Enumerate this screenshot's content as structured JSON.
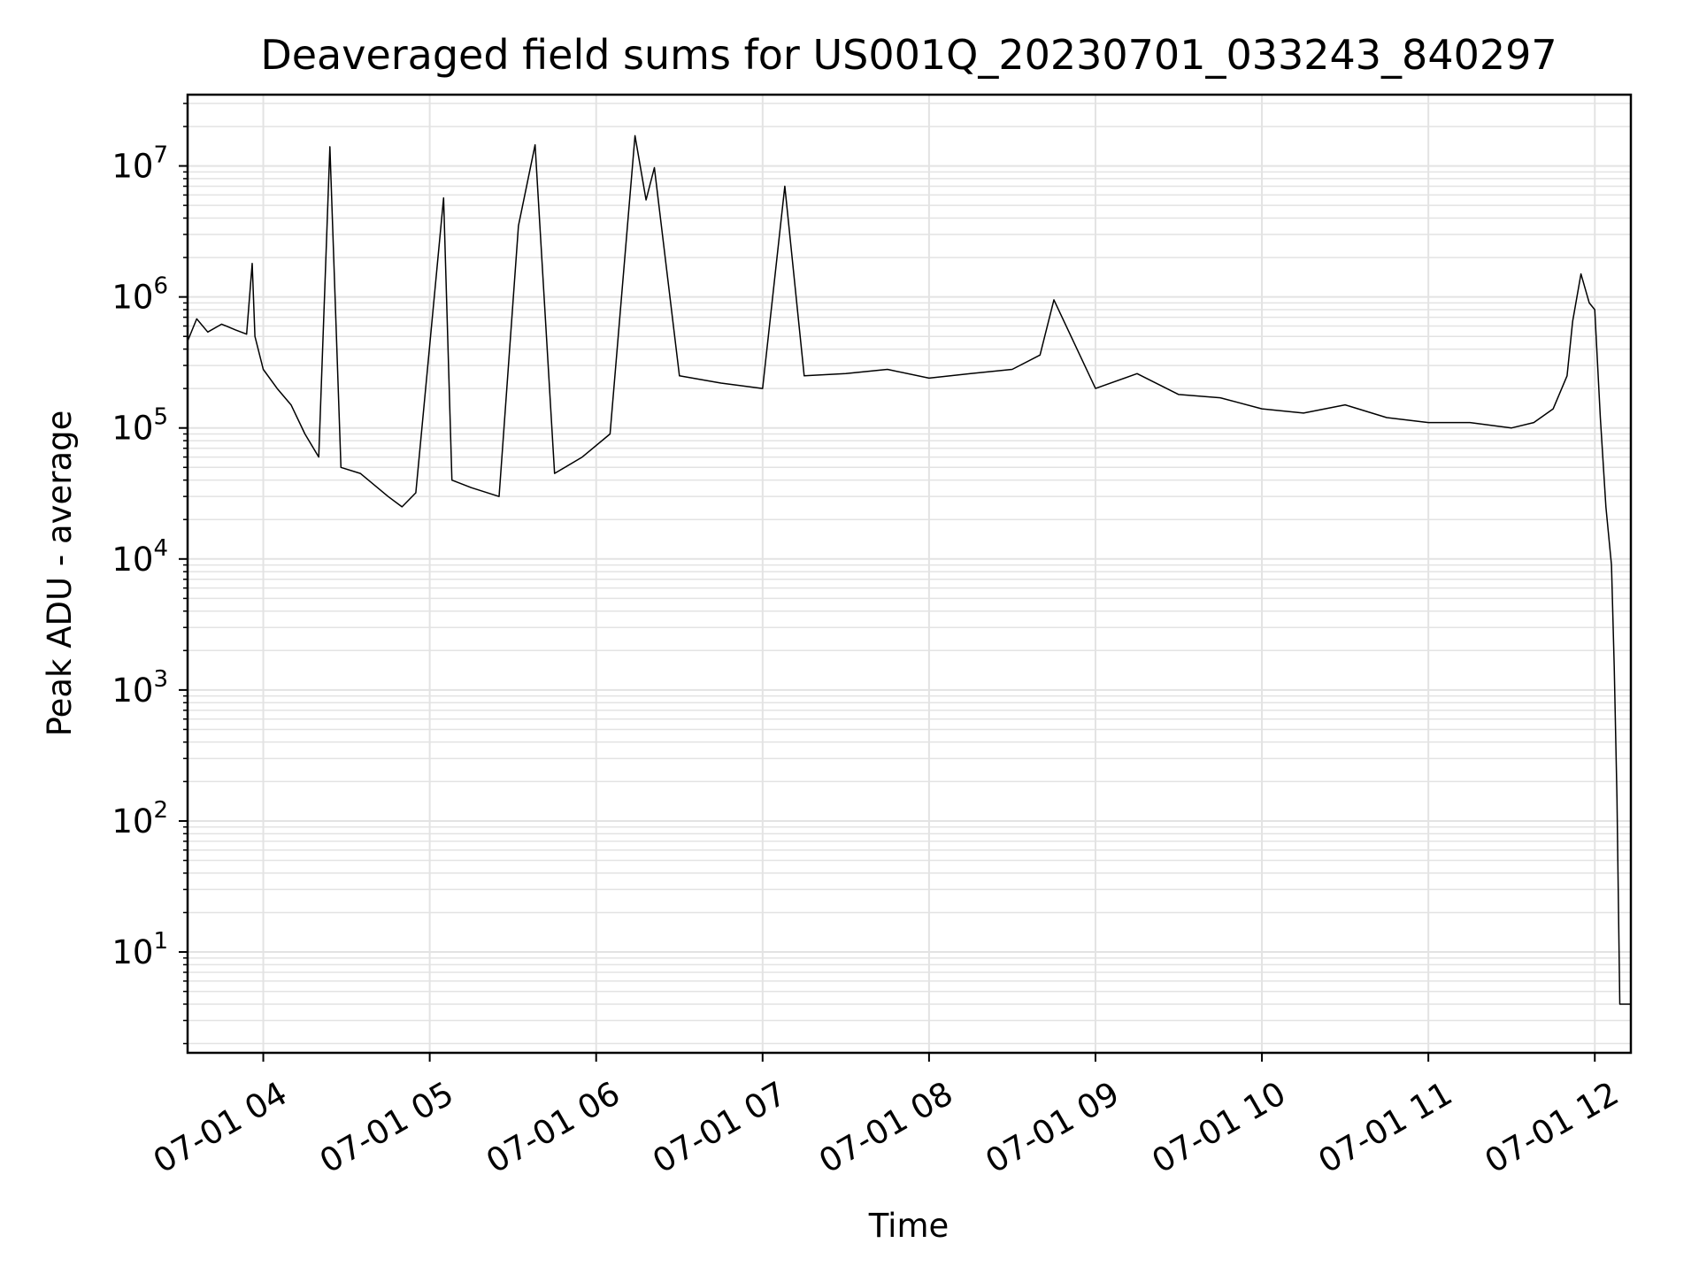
{
  "chart_data": {
    "type": "line",
    "title": "Deaveraged field sums for US001Q_20230701_033243_840297",
    "xlabel": "Time",
    "ylabel": "Peak ADU - average",
    "y_scale": "log",
    "ylim": [
      1.7,
      35000000.0
    ],
    "xlim": [
      "2023-07-01 03:32:43",
      "2023-07-01 12:13:00"
    ],
    "grid": true,
    "legend": "none",
    "line_color": "#000000",
    "grid_color": "#e3e3e3",
    "x_ticks": [
      {
        "value": "2023-07-01 04:00",
        "label": "07-01 04"
      },
      {
        "value": "2023-07-01 05:00",
        "label": "07-01 05"
      },
      {
        "value": "2023-07-01 06:00",
        "label": "07-01 06"
      },
      {
        "value": "2023-07-01 07:00",
        "label": "07-01 07"
      },
      {
        "value": "2023-07-01 08:00",
        "label": "07-01 08"
      },
      {
        "value": "2023-07-01 09:00",
        "label": "07-01 09"
      },
      {
        "value": "2023-07-01 10:00",
        "label": "07-01 10"
      },
      {
        "value": "2023-07-01 11:00",
        "label": "07-01 11"
      },
      {
        "value": "2023-07-01 12:00",
        "label": "07-01 12"
      }
    ],
    "y_ticks": [
      {
        "value": 10,
        "base": "10",
        "exp": "1"
      },
      {
        "value": 100,
        "base": "10",
        "exp": "2"
      },
      {
        "value": 1000,
        "base": "10",
        "exp": "3"
      },
      {
        "value": 10000,
        "base": "10",
        "exp": "4"
      },
      {
        "value": 100000,
        "base": "10",
        "exp": "5"
      },
      {
        "value": 1000000,
        "base": "10",
        "exp": "6"
      },
      {
        "value": 10000000,
        "base": "10",
        "exp": "7"
      }
    ],
    "series": [
      {
        "x": [
          "2023-07-01 03:32:43",
          "2023-07-01 03:36",
          "2023-07-01 03:40",
          "2023-07-01 03:45",
          "2023-07-01 03:50",
          "2023-07-01 03:54",
          "2023-07-01 03:56",
          "2023-07-01 03:57",
          "2023-07-01 04:00",
          "2023-07-01 04:05",
          "2023-07-01 04:10",
          "2023-07-01 04:15",
          "2023-07-01 04:20",
          "2023-07-01 04:24",
          "2023-07-01 04:28",
          "2023-07-01 04:35",
          "2023-07-01 04:45",
          "2023-07-01 04:50",
          "2023-07-01 04:55",
          "2023-07-01 05:05",
          "2023-07-01 05:08",
          "2023-07-01 05:15",
          "2023-07-01 05:25",
          "2023-07-01 05:32",
          "2023-07-01 05:38",
          "2023-07-01 05:45",
          "2023-07-01 05:55",
          "2023-07-01 06:05",
          "2023-07-01 06:14",
          "2023-07-01 06:18",
          "2023-07-01 06:21",
          "2023-07-01 06:30",
          "2023-07-01 06:45",
          "2023-07-01 07:00",
          "2023-07-01 07:08",
          "2023-07-01 07:15",
          "2023-07-01 07:30",
          "2023-07-01 07:45",
          "2023-07-01 08:00",
          "2023-07-01 08:15",
          "2023-07-01 08:30",
          "2023-07-01 08:40",
          "2023-07-01 08:45",
          "2023-07-01 09:00",
          "2023-07-01 09:15",
          "2023-07-01 09:30",
          "2023-07-01 09:45",
          "2023-07-01 10:00",
          "2023-07-01 10:15",
          "2023-07-01 10:30",
          "2023-07-01 10:45",
          "2023-07-01 11:00",
          "2023-07-01 11:15",
          "2023-07-01 11:30",
          "2023-07-01 11:38",
          "2023-07-01 11:45",
          "2023-07-01 11:50",
          "2023-07-01 11:52",
          "2023-07-01 11:55",
          "2023-07-01 11:58",
          "2023-07-01 12:00",
          "2023-07-01 12:02",
          "2023-07-01 12:04",
          "2023-07-01 12:06",
          "2023-07-01 12:07",
          "2023-07-01 12:08",
          "2023-07-01 12:09",
          "2023-07-01 12:10",
          "2023-07-01 12:13"
        ],
        "y": [
          460000,
          680000,
          540000,
          620000,
          560000,
          520000,
          1800000,
          500000,
          280000,
          200000,
          150000,
          90000,
          60000,
          14000000,
          50000,
          45000,
          30000,
          25000,
          32000,
          5700000,
          40000,
          35000,
          30000,
          3500000,
          14500000,
          45000,
          60000,
          90000,
          17000000,
          5500000,
          9700000,
          250000,
          220000,
          200000,
          7000000,
          250000,
          260000,
          280000,
          240000,
          260000,
          280000,
          360000,
          950000,
          200000,
          260000,
          180000,
          170000,
          140000,
          130000,
          150000,
          120000,
          110000,
          110000,
          100000,
          110000,
          140000,
          250000,
          650000,
          1500000,
          900000,
          800000,
          120000,
          25000,
          9000,
          1500,
          150,
          4,
          4,
          4
        ]
      }
    ]
  }
}
